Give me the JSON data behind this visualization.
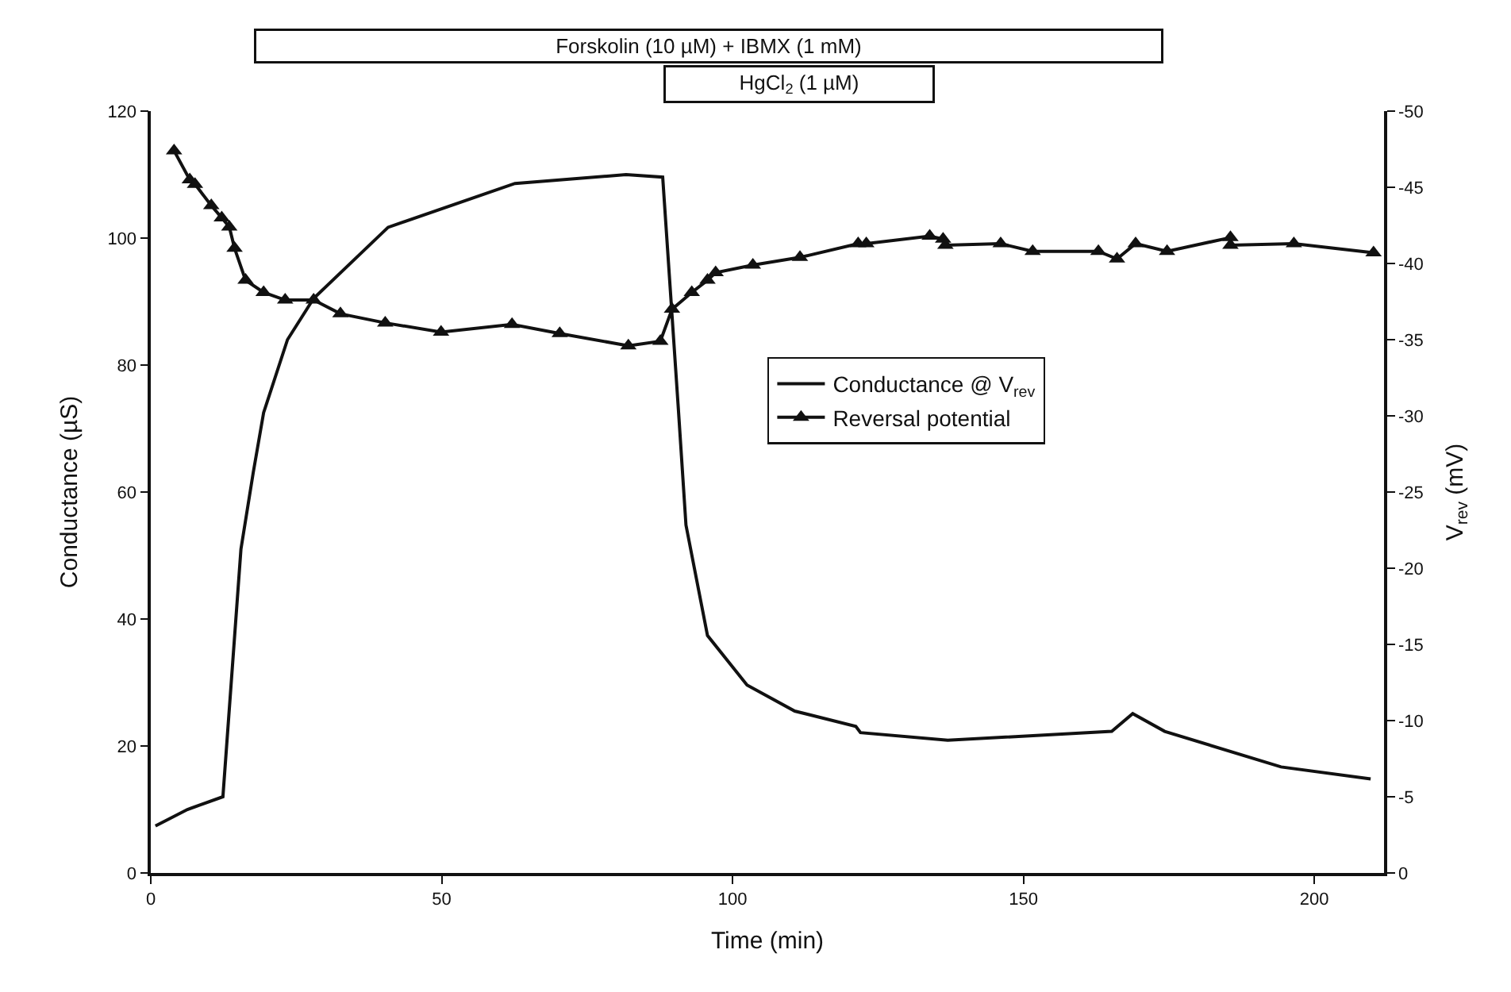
{
  "chart_data": {
    "type": "line",
    "xlabel": "Time (min)",
    "ylabel": "Conductance (µS)",
    "y2label": "V$_{rev}$ (mV)",
    "xlim": [
      0,
      212
    ],
    "xticks": [
      0,
      50,
      100,
      150,
      200
    ],
    "ylim": [
      0,
      120
    ],
    "yticks": [
      0,
      20,
      40,
      60,
      80,
      100,
      120
    ],
    "y2lim": [
      0,
      -50
    ],
    "y2ticks": [
      0,
      -5,
      -10,
      -15,
      -20,
      -25,
      -30,
      -35,
      -40,
      -45,
      -50
    ],
    "legend": "right",
    "annotations": [
      "Forskolin (10 µM) + IBMX (1 mM)",
      "HgCl$_{2}$ (1 µM)"
    ],
    "series": [
      {
        "name": "Conductance @ V$_{rev}$",
        "color": "#111111",
        "marker": "none",
        "x": [
          0.8,
          6.3,
          12.4,
          15.5,
          17.6,
          19.4,
          23.5,
          28,
          40.8,
          62.6,
          81.7,
          88,
          90.7,
          92,
          95.7,
          102.5,
          110.7,
          121.2,
          122,
          137,
          165.2,
          168.8,
          174.3,
          194.3,
          209.7
        ],
        "values": [
          7.4,
          10,
          12,
          51,
          63,
          72.5,
          84,
          90.5,
          101.7,
          108.6,
          110,
          109.6,
          73,
          54.8,
          37.4,
          29.6,
          25.5,
          23.1,
          22.1,
          20.9,
          22.3,
          25.1,
          22.3,
          16.7,
          14.8
        ]
      },
      {
        "name": "Reversal potential",
        "color": "#111111",
        "marker": "triangle",
        "axis": "y2",
        "x": [
          4,
          6.7,
          7.6,
          10.4,
          12.2,
          13.5,
          14.4,
          16.3,
          19.4,
          23.1,
          28,
          32.6,
          40.3,
          49.9,
          62.1,
          70.3,
          82.1,
          87.6,
          89.6,
          93,
          95.7,
          97.1,
          103.5,
          111.6,
          121.6,
          123,
          133.9,
          136.2,
          136.6,
          146.1,
          151.6,
          162.9,
          166.1,
          169.3,
          174.7,
          185.6,
          185.6,
          196.5,
          210.2
        ],
        "values": [
          -47.4,
          -45.5,
          -45.2,
          -43.8,
          -43,
          -42.4,
          -41,
          -38.9,
          -38.1,
          -37.6,
          -37.6,
          -36.7,
          -36.1,
          -35.5,
          -36,
          -35.4,
          -34.6,
          -34.9,
          -37,
          -38.1,
          -38.9,
          -39.4,
          -39.9,
          -40.4,
          -41.3,
          -41.3,
          -41.8,
          -41.6,
          -41.2,
          -41.3,
          -40.8,
          -40.8,
          -40.3,
          -41.3,
          -40.8,
          -41.7,
          -41.2,
          -41.3,
          -40.7
        ]
      }
    ]
  }
}
